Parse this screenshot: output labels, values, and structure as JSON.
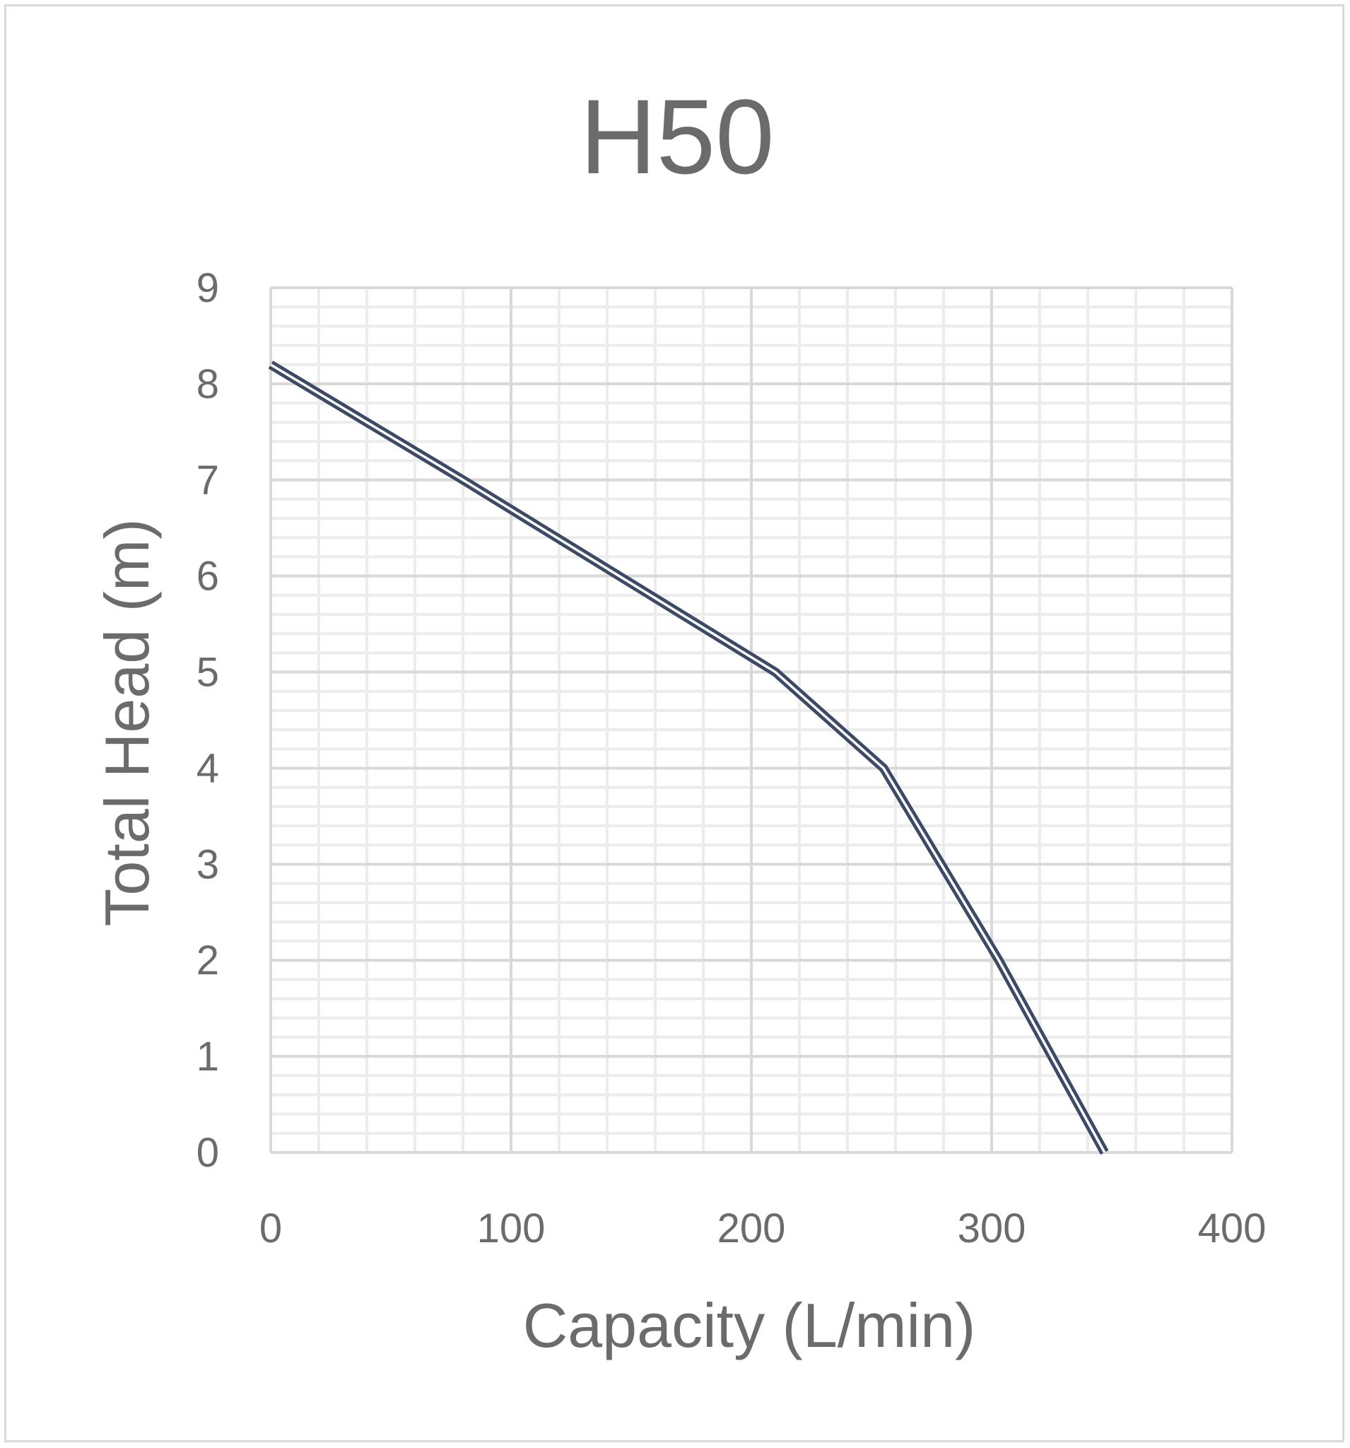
{
  "chart_data": {
    "type": "line",
    "title": "H50",
    "xlabel": "Capacity (L/min)",
    "ylabel": "Total Head (m)",
    "xlim": [
      0,
      400
    ],
    "ylim": [
      0,
      9
    ],
    "xticks": [
      0,
      100,
      200,
      300,
      400
    ],
    "yticks": [
      0,
      1,
      2,
      3,
      4,
      5,
      6,
      7,
      8,
      9
    ],
    "grid": true,
    "series": [
      {
        "x": [
          0,
          80,
          210,
          255,
          303,
          347
        ],
        "y": [
          8.2,
          7.0,
          5.0,
          4.0,
          2.0,
          0.0
        ],
        "color": "#3d4a66",
        "style": "double-line"
      }
    ]
  }
}
